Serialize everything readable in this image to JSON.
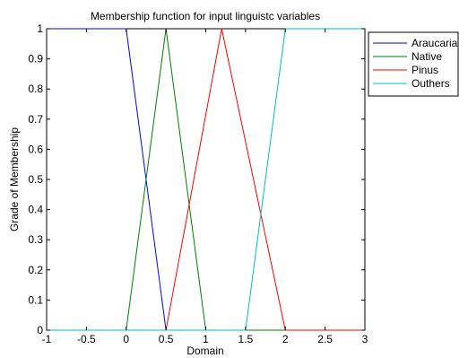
{
  "chart_data": {
    "type": "line",
    "title": "Membership function for input linguistc variables",
    "xlabel": "Domain",
    "ylabel": "Grade of Membership",
    "xlim": [
      -1,
      3
    ],
    "ylim": [
      0,
      1
    ],
    "xticks": [
      "-1",
      "-0.5",
      "0",
      "0.5",
      "1",
      "1.5",
      "2",
      "2.5",
      "3"
    ],
    "yticks": [
      "0",
      "0.1",
      "0.2",
      "0.3",
      "0.4",
      "0.5",
      "0.6",
      "0.7",
      "0.8",
      "0.9",
      "1"
    ],
    "grid": false,
    "legend_position": "outside-top-right",
    "series": [
      {
        "name": "Araucaria",
        "color": "#0000ff",
        "x": [
          -1,
          0,
          0.5,
          3
        ],
        "y": [
          1,
          1,
          0,
          0
        ]
      },
      {
        "name": "Native",
        "color": "#008000",
        "x": [
          -1,
          0,
          0.5,
          1,
          3
        ],
        "y": [
          0,
          0,
          1,
          0,
          0
        ]
      },
      {
        "name": "Pinus",
        "color": "#ff0000",
        "x": [
          -1,
          0.5,
          1.2,
          2,
          3
        ],
        "y": [
          0,
          0,
          1,
          0,
          0
        ]
      },
      {
        "name": "Outhers",
        "color": "#00bfbf",
        "x": [
          -1,
          1.5,
          2,
          3
        ],
        "y": [
          0,
          0,
          1,
          1
        ]
      }
    ]
  }
}
